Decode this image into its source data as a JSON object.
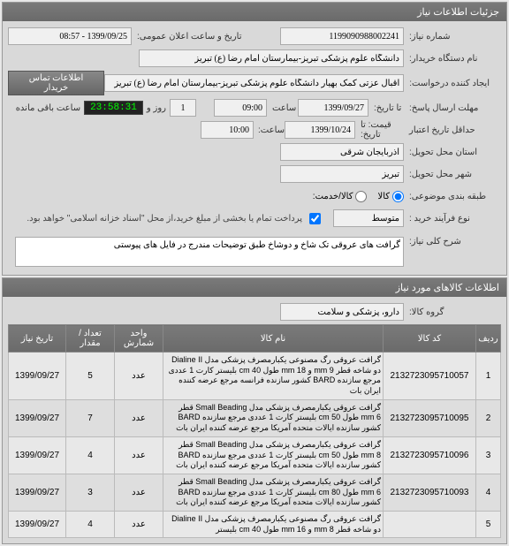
{
  "panels": {
    "info": {
      "title": "جزئیات اطلاعات نیاز"
    },
    "items": {
      "title": "اطلاعات کالاهای مورد نیاز"
    }
  },
  "fields": {
    "need_no_label": "شماره نیاز:",
    "need_no": "1199090988002241",
    "pub_datetime_label": "تاریخ و ساعت اعلان عمومی:",
    "pub_datetime": "1399/09/25 - 08:57",
    "buyer_org_label": "نام دستگاه خریدار:",
    "buyer_org": "دانشگاه علوم پزشکی تبریز-بیمارستان امام رضا (ع) تبریز",
    "creator_label": "ایجاد کننده درخواست:",
    "creator": "اقبال عزتی کمک بهیار دانشگاه علوم پزشکی تبریز-بیمارستان امام رضا (ع) تبریز",
    "contact_btn": "اطلاعات تماس خریدار",
    "deadline_label": "مهلت ارسال پاسخ:",
    "deadline_to": "تا تاریخ:",
    "deadline_date": "1399/09/27",
    "deadline_time_label": "ساعت",
    "deadline_time": "09:00",
    "days": "1",
    "days_label": "روز و",
    "timer": "23:58:31",
    "remain_label": "ساعت باقی مانده",
    "validity_label": "حداقل تاریخ اعتبار",
    "price_to": "قیمت: تا تاریخ:",
    "validity_date": "1399/10/24",
    "validity_time_label": "ساعت:",
    "validity_time": "10:00",
    "province_label": "استان محل تحویل:",
    "province": "آذربایجان شرقی",
    "city_label": "شهر محل تحویل:",
    "city": "تبریز",
    "budget_label": "طبقه بندی موضوعی:",
    "goods_label": "کالا",
    "service_label": "کالا/خدمت:",
    "process_label": "نوع فرآیند خرید :",
    "process_value": "متوسط",
    "pay_note": "پرداخت تمام یا بخشی از مبلغ خرید،از محل \"اسناد خزانه اسلامی\" خواهد بود.",
    "general_desc_label": "شرح کلی نیاز:",
    "general_desc": "گرافت های عروقی تک شاخ و دوشاخ طبق توضیحات مندرج در فایل های پیوستی",
    "goods_group_label": "گروه کالا:",
    "goods_group": "دارو، پزشکی و سلامت"
  },
  "table": {
    "headers": {
      "idx": "ردیف",
      "code": "کد کالا",
      "name": "نام کالا",
      "unit": "واحد شمارش",
      "qty": "تعداد / مقدار",
      "date": "تاریخ نیاز"
    },
    "rows": [
      {
        "idx": "1",
        "code": "2132723095710057",
        "name": "گرافت عروقی رگ مصنوعی یکبارمصرف پزشکی مدل Dialine II دو شاخه قطر mm 9 و mm 18 طول cm 40 بلیستر کارت 1 عددی مرجع سازنده BARD کشور سازنده فرانسه مرجع عرضه کننده ایران بات",
        "unit": "عدد",
        "qty": "5",
        "date": "1399/09/27"
      },
      {
        "idx": "2",
        "code": "2132723095710095",
        "name": "گرافت عروقی یکبارمصرف پزشکی مدل Small Beading قطر mm 6 طول cm 50 بلیستر کارت 1 عددی مرجع سازنده BARD کشور سازنده ایالات متحده آمریکا مرجع عرضه کننده ایران بات",
        "unit": "عدد",
        "qty": "7",
        "date": "1399/09/27"
      },
      {
        "idx": "3",
        "code": "2132723095710096",
        "name": "گرافت عروقی یکبارمصرف پزشکی مدل Small Beading قطر mm 8 طول cm 50 بلیستر کارت 1 عددی مرجع سازنده BARD کشور سازنده ایالات متحده آمریکا مرجع عرضه کننده ایران بات",
        "unit": "عدد",
        "qty": "4",
        "date": "1399/09/27"
      },
      {
        "idx": "4",
        "code": "2132723095710093",
        "name": "گرافت عروقی یکبارمصرف پزشکی مدل Small Beading قطر mm 6 طول cm 80 بلیستر کارت 1 عددی مرجع سازنده BARD کشور سازنده ایالات متحده آمریکا مرجع عرضه کننده ایران بات",
        "unit": "عدد",
        "qty": "3",
        "date": "1399/09/27"
      },
      {
        "idx": "5",
        "code": "",
        "name": "گرافت عروقی رگ مصنوعی یکبارمصرف پزشکی مدل Dialine II دو شاخه قطر mm 8 و mm 16 طول cm 40 بلیستر",
        "unit": "عدد",
        "qty": "4",
        "date": "1399/09/27"
      }
    ]
  }
}
